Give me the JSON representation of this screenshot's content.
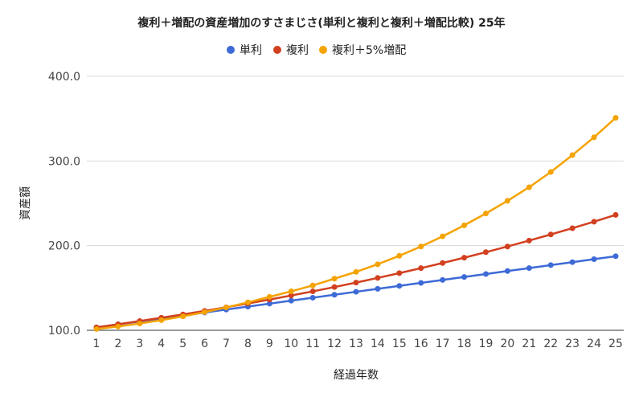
{
  "chart_data": {
    "type": "line",
    "title": "複利＋増配の資産増加のすさまじさ(単利と複利と複利＋増配比較) 25年",
    "xlabel": "経過年数",
    "ylabel": "資産額",
    "ylim": [
      100,
      400
    ],
    "yticks": [
      "100.0",
      "200.0",
      "300.0",
      "400.0"
    ],
    "categories": [
      "1",
      "2",
      "3",
      "4",
      "5",
      "6",
      "7",
      "8",
      "9",
      "10",
      "11",
      "12",
      "13",
      "14",
      "15",
      "16",
      "17",
      "18",
      "19",
      "20",
      "21",
      "22",
      "23",
      "24",
      "25"
    ],
    "legend_position": "top",
    "grid": true,
    "series": [
      {
        "name": "単利",
        "color": "#3d6ad6",
        "values": [
          103.5,
          107,
          110.5,
          114,
          117.5,
          121,
          124.5,
          128,
          131.5,
          135,
          138.5,
          142,
          145.5,
          149,
          152.5,
          156,
          159.5,
          163,
          166.5,
          170,
          173.5,
          177,
          180.5,
          184,
          187.5
        ]
      },
      {
        "name": "複利",
        "color": "#d2401f",
        "values": [
          103.5,
          107.1,
          110.9,
          114.8,
          118.8,
          122.9,
          127.2,
          131.7,
          136.3,
          141.1,
          146.0,
          151.1,
          156.4,
          161.9,
          167.5,
          173.4,
          179.5,
          185.8,
          192.3,
          199.0,
          206.0,
          213.2,
          220.6,
          228.3,
          236.3
        ]
      },
      {
        "name": "複利＋5%増配",
        "color": "#f4a300",
        "values": [
          101.5,
          104.5,
          108.0,
          112.0,
          116.5,
          121.5,
          127.0,
          133.0,
          139.5,
          146.0,
          153.0,
          161.0,
          169.0,
          178.0,
          188.0,
          199.0,
          211.0,
          224.0,
          238.0,
          253.0,
          269.0,
          287.0,
          307.0,
          328.0,
          351.0
        ]
      }
    ]
  }
}
